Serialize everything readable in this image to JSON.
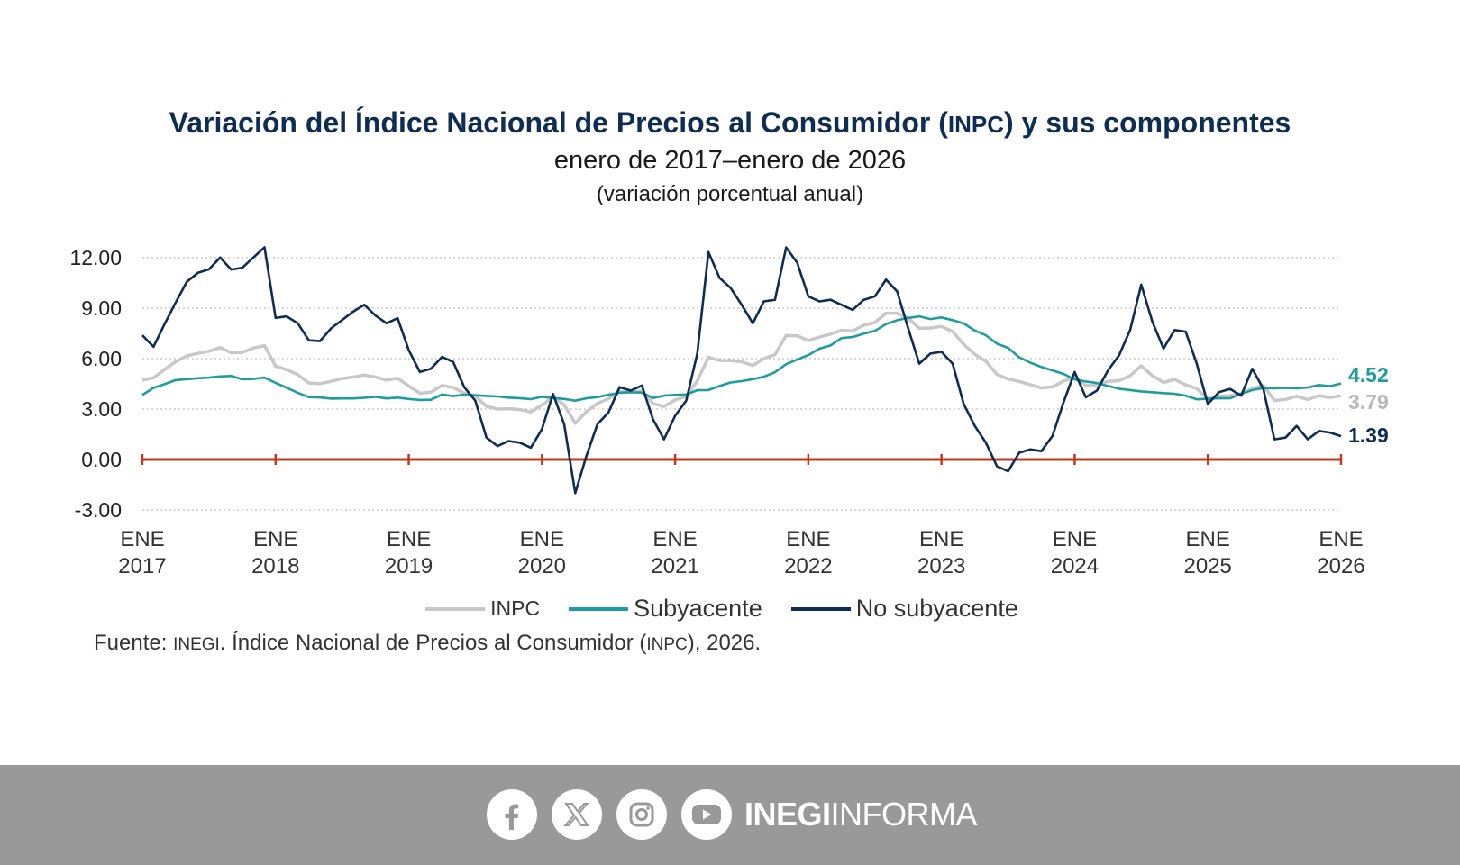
{
  "title_main": "Variación del Índice Nacional de Precios al Consumidor (",
  "title_abbr": "INPC",
  "title_end": ") y sus componentes",
  "subtitle": "enero de 2017–enero de 2026",
  "units": "(variación porcentual anual)",
  "legend": {
    "inpc": "INPC",
    "subyacente": "Subyacente",
    "no_subyacente": "No subyacente"
  },
  "source": {
    "prefix": "Fuente: ",
    "org": "INEGI",
    "middle": ". Índice Nacional de Precios al Consumidor (",
    "abbr": "INPC",
    "suffix": "), 2026."
  },
  "footer": {
    "brand_bold": "INEGI",
    "brand_light": "INFORMA",
    "icons": [
      "facebook-icon",
      "x-icon",
      "instagram-icon",
      "youtube-icon"
    ]
  },
  "colors": {
    "inpc": "#c8c8c8",
    "subyacente": "#1f9c9c",
    "no_subyacente": "#0f2c52",
    "zero_line": "#c0391b",
    "grid": "#b0b0b0"
  },
  "chart_data": {
    "type": "line",
    "title": "Variación del Índice Nacional de Precios al Consumidor (INPC) y sus componentes",
    "ylabel": "variación porcentual anual",
    "ylim": [
      -3,
      12
    ],
    "yticks": [
      "12.00",
      "9.00",
      "6.00",
      "3.00",
      "0.00",
      "-3.00"
    ],
    "ytick_values": [
      12,
      9,
      6,
      3,
      0,
      -3
    ],
    "xticks": [
      {
        "top": "ENE",
        "bottom": "2017"
      },
      {
        "top": "ENE",
        "bottom": "2018"
      },
      {
        "top": "ENE",
        "bottom": "2019"
      },
      {
        "top": "ENE",
        "bottom": "2020"
      },
      {
        "top": "ENE",
        "bottom": "2021"
      },
      {
        "top": "ENE",
        "bottom": "2022"
      },
      {
        "top": "ENE",
        "bottom": "2023"
      },
      {
        "top": "ENE",
        "bottom": "2024"
      },
      {
        "top": "ENE",
        "bottom": "2025"
      },
      {
        "top": "ENE",
        "bottom": "2026"
      }
    ],
    "x_start": "2017-01",
    "x_end": "2026-01",
    "end_labels": {
      "subyacente": "4.52",
      "inpc": "3.79",
      "no_subyacente": "1.39"
    },
    "series": [
      {
        "name": "INPC",
        "values": [
          4.72,
          4.86,
          5.35,
          5.82,
          6.16,
          6.31,
          6.44,
          6.66,
          6.35,
          6.37,
          6.63,
          6.77,
          5.55,
          5.34,
          5.04,
          4.55,
          4.51,
          4.65,
          4.81,
          4.9,
          5.02,
          4.9,
          4.72,
          4.83,
          4.37,
          3.94,
          4.0,
          4.41,
          4.28,
          3.95,
          3.78,
          3.16,
          3.0,
          3.02,
          2.97,
          2.83,
          3.24,
          3.7,
          3.25,
          2.15,
          2.84,
          3.33,
          3.62,
          4.05,
          4.01,
          4.09,
          3.33,
          3.15,
          3.54,
          3.76,
          4.67,
          6.08,
          5.89,
          5.88,
          5.81,
          5.59,
          6.0,
          6.24,
          7.37,
          7.36,
          7.07,
          7.28,
          7.45,
          7.68,
          7.65,
          7.99,
          8.15,
          8.7,
          8.7,
          8.41,
          7.8,
          7.82,
          7.91,
          7.62,
          6.85,
          6.25,
          5.84,
          5.06,
          4.79,
          4.64,
          4.45,
          4.26,
          4.32,
          4.66,
          4.88,
          4.4,
          4.42,
          4.65,
          4.69,
          4.98,
          5.57,
          4.99,
          4.58,
          4.76,
          4.44,
          4.21,
          3.59,
          3.77,
          3.8,
          3.93,
          4.22,
          4.42,
          3.51,
          3.57,
          3.76,
          3.57,
          3.8,
          3.69,
          3.79
        ]
      },
      {
        "name": "Subyacente",
        "values": [
          3.84,
          4.26,
          4.48,
          4.72,
          4.78,
          4.83,
          4.87,
          4.94,
          4.97,
          4.77,
          4.79,
          4.87,
          4.56,
          4.27,
          3.97,
          3.71,
          3.69,
          3.62,
          3.63,
          3.63,
          3.67,
          3.73,
          3.63,
          3.68,
          3.6,
          3.54,
          3.55,
          3.87,
          3.77,
          3.85,
          3.82,
          3.78,
          3.75,
          3.68,
          3.65,
          3.59,
          3.73,
          3.66,
          3.6,
          3.5,
          3.64,
          3.71,
          3.85,
          3.97,
          4.0,
          3.98,
          3.66,
          3.8,
          3.84,
          3.87,
          4.12,
          4.13,
          4.37,
          4.58,
          4.66,
          4.78,
          4.92,
          5.19,
          5.67,
          5.94,
          6.21,
          6.59,
          6.78,
          7.22,
          7.28,
          7.49,
          7.65,
          8.05,
          8.28,
          8.42,
          8.51,
          8.35,
          8.45,
          8.29,
          8.09,
          7.67,
          7.39,
          6.89,
          6.64,
          6.08,
          5.76,
          5.5,
          5.3,
          5.09,
          4.76,
          4.64,
          4.55,
          4.37,
          4.21,
          4.13,
          4.05,
          4.0,
          3.95,
          3.91,
          3.8,
          3.58,
          3.61,
          3.65,
          3.64,
          3.9,
          4.13,
          4.25,
          4.23,
          4.26,
          4.23,
          4.28,
          4.43,
          4.36,
          4.52
        ]
      },
      {
        "name": "No subyacente",
        "values": [
          7.39,
          6.7,
          8.05,
          9.33,
          10.57,
          11.1,
          11.31,
          12.01,
          11.3,
          11.4,
          12.01,
          12.62,
          8.42,
          8.51,
          8.1,
          7.09,
          7.04,
          7.8,
          8.3,
          8.8,
          9.2,
          8.56,
          8.1,
          8.4,
          6.5,
          5.2,
          5.4,
          6.1,
          5.8,
          4.3,
          3.5,
          1.3,
          0.8,
          1.1,
          1.0,
          0.7,
          1.8,
          3.9,
          2.1,
          -2.0,
          0.2,
          2.1,
          2.8,
          4.3,
          4.1,
          4.4,
          2.4,
          1.2,
          2.6,
          3.5,
          6.3,
          12.34,
          10.8,
          10.2,
          9.2,
          8.1,
          9.4,
          9.5,
          12.61,
          11.7,
          9.7,
          9.4,
          9.5,
          9.2,
          8.9,
          9.5,
          9.7,
          10.7,
          10.0,
          7.8,
          5.7,
          6.3,
          6.4,
          5.7,
          3.3,
          2.0,
          1.0,
          -0.4,
          -0.7,
          0.4,
          0.6,
          0.5,
          1.4,
          3.4,
          5.2,
          3.7,
          4.1,
          5.3,
          6.2,
          7.7,
          10.4,
          8.2,
          6.6,
          7.7,
          7.6,
          5.7,
          3.3,
          4.0,
          4.2,
          3.8,
          5.4,
          4.2,
          1.2,
          1.3,
          2.0,
          1.2,
          1.7,
          1.6,
          1.39
        ]
      }
    ]
  }
}
